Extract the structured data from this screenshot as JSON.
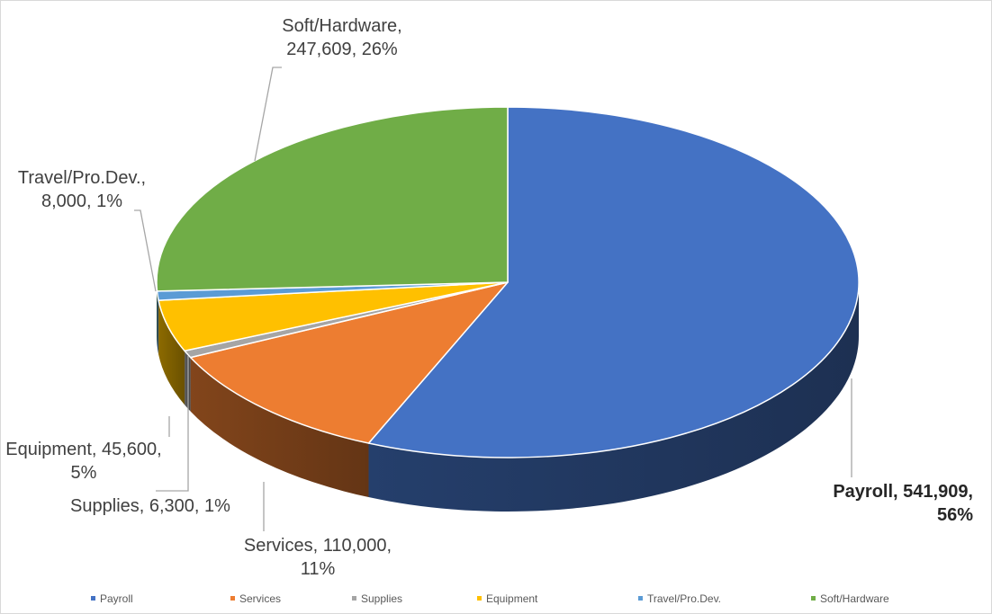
{
  "chart_data": {
    "type": "pie",
    "style": "3d",
    "title": "",
    "categories": [
      "Payroll",
      "Services",
      "Supplies",
      "Equipment",
      "Travel/Pro.Dev.",
      "Soft/Hardware"
    ],
    "values": [
      541909,
      110000,
      6300,
      45600,
      8000,
      247609
    ],
    "percentages": [
      "56%",
      "11%",
      "1%",
      "5%",
      "1%",
      "26%"
    ],
    "data_labels": [
      {
        "lines": [
          "Payroll, 541,909,",
          "56%"
        ],
        "bold": true
      },
      {
        "lines": [
          "Services, 110,000,",
          "11%"
        ]
      },
      {
        "lines": [
          "Supplies, 6,300, 1%"
        ]
      },
      {
        "lines": [
          "Equipment, 45,600,",
          "5%"
        ]
      },
      {
        "lines": [
          "Travel/Pro.Dev.,",
          "8,000, 1%"
        ]
      },
      {
        "lines": [
          "Soft/Hardware,",
          "247,609, 26%"
        ]
      }
    ],
    "colors": [
      "#4472C4",
      "#ED7D31",
      "#A5A5A5",
      "#FFC000",
      "#5B9BD5",
      "#70AD47"
    ],
    "legend_position": "bottom"
  }
}
